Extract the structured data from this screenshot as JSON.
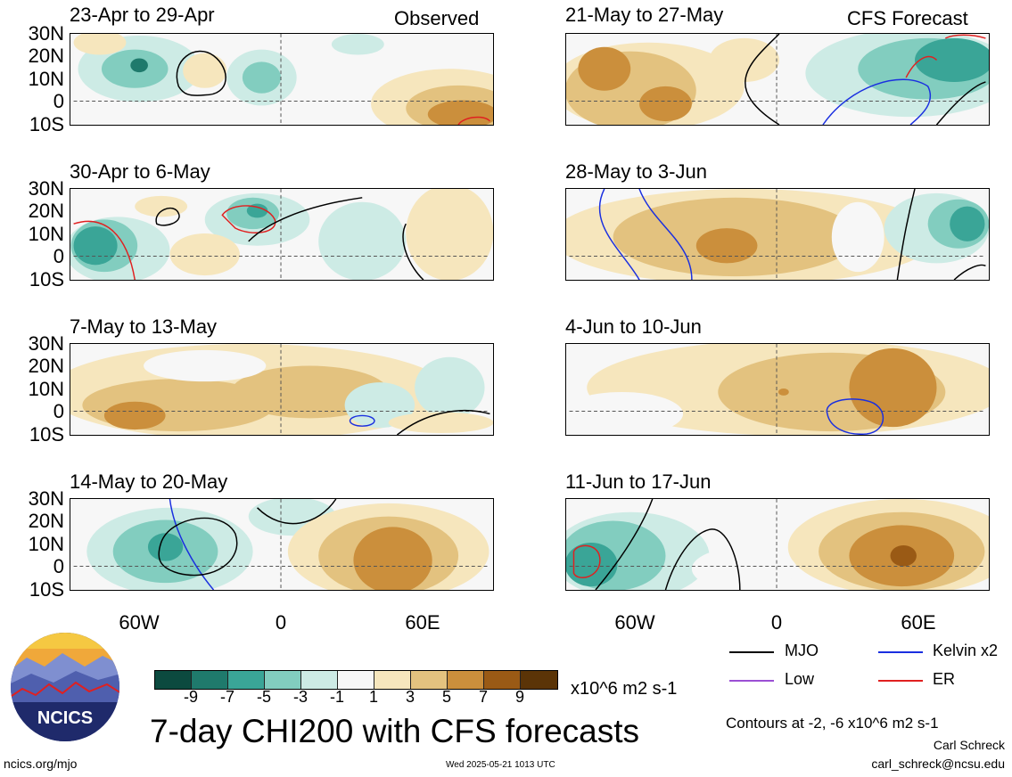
{
  "panels": [
    {
      "title": "23-Apr to 29-Apr",
      "tag": "Observed"
    },
    {
      "title": "21-May to 27-May",
      "tag": "CFS Forecast"
    },
    {
      "title": "30-Apr to 6-May",
      "tag": ""
    },
    {
      "title": "28-May to 3-Jun",
      "tag": ""
    },
    {
      "title": "7-May to 13-May",
      "tag": ""
    },
    {
      "title": "4-Jun to 10-Jun",
      "tag": ""
    },
    {
      "title": "14-May to 20-May",
      "tag": ""
    },
    {
      "title": "11-Jun to 17-Jun",
      "tag": ""
    }
  ],
  "lat_labels": [
    "30N",
    "20N",
    "10N",
    "0",
    "10S"
  ],
  "lon_labels": [
    "60W",
    "0",
    "60E"
  ],
  "colorbar": {
    "colors": [
      "#0c4a3f",
      "#1f7a6c",
      "#3aa597",
      "#82cdbf",
      "#cdebe5",
      "#f7f7f7",
      "#f6e6bd",
      "#e3c27f",
      "#cb8f3c",
      "#9a5a15",
      "#5b3407"
    ],
    "labels": [
      "-9",
      "-7",
      "-5",
      "-3",
      "-1",
      "1",
      "3",
      "5",
      "7",
      "9"
    ],
    "units": "x10^6 m2 s-1"
  },
  "legend": [
    {
      "label": "MJO",
      "color": "#000000"
    },
    {
      "label": "Kelvin x2",
      "color": "#1a2fe0"
    },
    {
      "label": "Low",
      "color": "#9b4fd4"
    },
    {
      "label": "ER",
      "color": "#e02020"
    }
  ],
  "main_title": "7-day CHI200 with CFS forecasts",
  "contour_note": "Contours at -2, -6 x10^6 m2 s-1",
  "author": "Carl Schreck",
  "email": "carl_schreck@ncsu.edu",
  "site": "ncics.org/mjo",
  "timestamp": "Wed 2025-05-21 1013 UTC",
  "logo_text": "NCICS",
  "colors": {
    "neg": "#3aa597",
    "neg_light": "#cdebe5",
    "pos_light": "#f6e6bd",
    "pos": "#e3c27f",
    "pos_dark": "#cb8f3c"
  }
}
